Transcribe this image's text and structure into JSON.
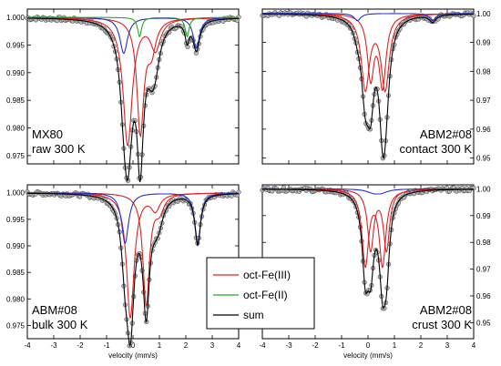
{
  "colors": {
    "oct_fe3": "#e02020",
    "oct_fe2": "#22aa22",
    "tet": "#2030d0",
    "sum": "#000000",
    "points": "#b8b8b8"
  },
  "legend": {
    "items": [
      {
        "label": "oct-Fe(III)",
        "color": "#e02020"
      },
      {
        "label": "oct-Fe(II)",
        "color": "#22aa22"
      },
      {
        "label": "sum",
        "color": "#000000"
      }
    ]
  },
  "chart_data": [
    {
      "type": "line",
      "label_lines": [
        "MX80",
        "raw 300 K"
      ],
      "xlabel": "",
      "xlim": [
        -4,
        4
      ],
      "ylim": [
        0.9735,
        1.0015
      ],
      "xticks": [
        -4,
        -3,
        -2,
        -1,
        0,
        1,
        2,
        3,
        4
      ],
      "yticks": [
        "1.000",
        "0.995",
        "0.990",
        "0.985",
        "0.980",
        "0.975"
      ],
      "ytick_values": [
        1.0,
        0.995,
        0.99,
        0.985,
        0.98,
        0.975
      ],
      "yaxis_side": "left",
      "components": [
        {
          "color": "red",
          "centers": [
            -0.2,
            0.85
          ],
          "depths": [
            0.023,
            0.0055
          ],
          "widths": [
            0.42,
            0.45
          ]
        },
        {
          "color": "red",
          "centers": [
            0.28,
            0.7
          ],
          "depths": [
            0.0205,
            0.0055
          ],
          "widths": [
            0.32,
            0.4
          ]
        },
        {
          "color": "blue",
          "centers": [
            -0.35,
            2.4
          ],
          "depths": [
            0.0065,
            0.0055
          ],
          "widths": [
            0.35,
            0.3
          ]
        },
        {
          "color": "green",
          "centers": [
            0.25,
            2.05
          ],
          "depths": [
            0.0035,
            0.0035
          ],
          "widths": [
            0.18,
            0.18
          ]
        }
      ]
    },
    {
      "type": "line",
      "label_lines": [
        "ABM2#08",
        "contact 300 K"
      ],
      "xlabel": "",
      "xlim": [
        -4,
        4
      ],
      "ylim": [
        0.948,
        1.0015
      ],
      "xticks": [
        -4,
        -3,
        -2,
        -1,
        0,
        1,
        2,
        3,
        4
      ],
      "yticks": [
        "1.00",
        "0.99",
        "0.98",
        "0.97",
        "0.96",
        "0.95"
      ],
      "ytick_values": [
        1.0,
        0.99,
        0.98,
        0.97,
        0.96,
        0.95
      ],
      "yaxis_side": "right",
      "components": [
        {
          "color": "red",
          "centers": [
            -0.1,
            0.65
          ],
          "depths": [
            0.0255,
            0.0255
          ],
          "widths": [
            0.38,
            0.38
          ]
        },
        {
          "color": "red",
          "centers": [
            0.1,
            0.55
          ],
          "depths": [
            0.0215,
            0.0245
          ],
          "widths": [
            0.3,
            0.32
          ]
        },
        {
          "color": "blue",
          "centers": [
            -0.4,
            2.45
          ],
          "depths": [
            0.0025,
            0.0025
          ],
          "widths": [
            0.3,
            0.3
          ]
        }
      ]
    },
    {
      "type": "line",
      "label_lines": [
        "ABM#08",
        "bulk  300 K"
      ],
      "xlabel": "velocity (mm/s)",
      "xlim": [
        -4,
        4
      ],
      "ylim": [
        0.9725,
        1.0015
      ],
      "xticks": [
        -4,
        -3,
        -2,
        -1,
        0,
        1,
        2,
        3,
        4
      ],
      "yticks": [
        "1.000",
        "0.995",
        "0.990",
        "0.985",
        "0.980",
        "0.975"
      ],
      "ytick_values": [
        1.0,
        0.995,
        0.99,
        0.985,
        0.98,
        0.975
      ],
      "yaxis_side": "left",
      "components": [
        {
          "color": "red",
          "centers": [
            -0.1,
            0.85
          ],
          "depths": [
            0.0235,
            0.003
          ],
          "widths": [
            0.35,
            0.4
          ]
        },
        {
          "color": "red",
          "centers": [
            0.5,
            1.0
          ],
          "depths": [
            0.021,
            0.003
          ],
          "widths": [
            0.3,
            0.4
          ]
        },
        {
          "color": "blue",
          "centers": [
            -0.3,
            2.45
          ],
          "depths": [
            0.0095,
            0.0095
          ],
          "widths": [
            0.32,
            0.26
          ]
        }
      ]
    },
    {
      "type": "line",
      "label_lines": [
        "ABM2#08",
        "crust 300 K"
      ],
      "xlabel": "velocity (mm/s)",
      "xlim": [
        -4,
        4
      ],
      "ylim": [
        0.944,
        1.0015
      ],
      "xticks": [
        -4,
        -3,
        -2,
        -1,
        0,
        1,
        2,
        3,
        4
      ],
      "yticks": [
        "1.00",
        "0.99",
        "0.98",
        "0.97",
        "0.96",
        "0.95"
      ],
      "ytick_values": [
        1.0,
        0.99,
        0.98,
        0.97,
        0.96,
        0.95
      ],
      "yaxis_side": "right",
      "components": [
        {
          "color": "red",
          "centers": [
            -0.1,
            0.55
          ],
          "depths": [
            0.028,
            0.028
          ],
          "widths": [
            0.3,
            0.3
          ]
        },
        {
          "color": "red",
          "centers": [
            0.1,
            0.7
          ],
          "depths": [
            0.0225,
            0.0225
          ],
          "widths": [
            0.28,
            0.28
          ]
        },
        {
          "color": "blue",
          "centers": [
            0.2,
            0.5
          ],
          "depths": [
            0.0012,
            0.0012
          ],
          "widths": [
            0.6,
            0.6
          ]
        }
      ]
    }
  ]
}
